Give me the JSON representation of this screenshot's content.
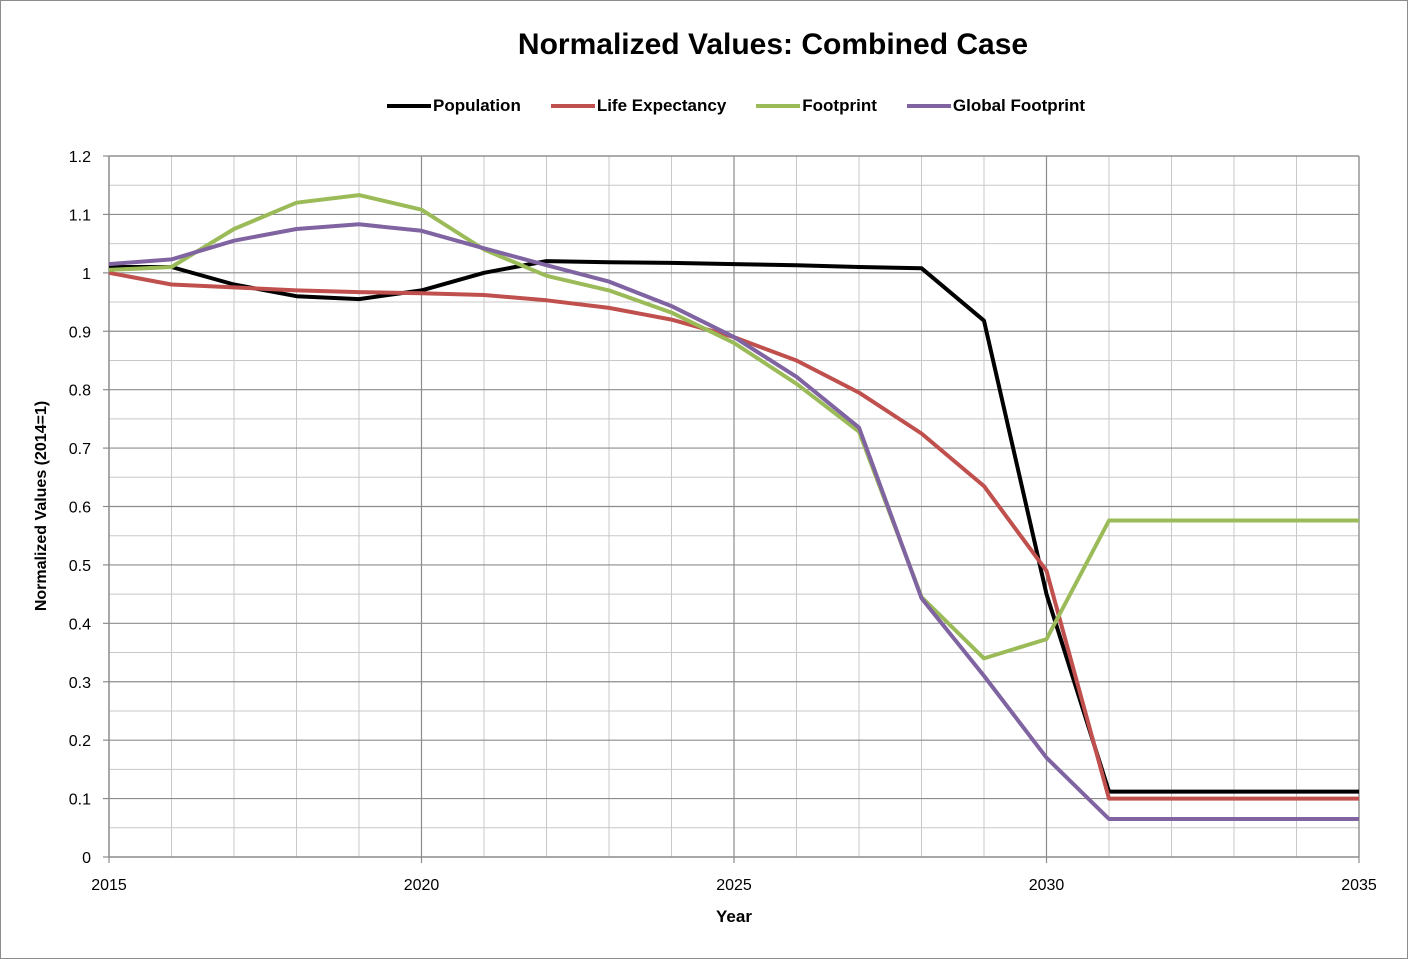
{
  "chart_data": {
    "type": "line",
    "title": "Normalized Values: Combined Case",
    "xlabel": "Year",
    "ylabel": "Normalized Values (2014=1)",
    "xlim": [
      2015,
      2035
    ],
    "ylim": [
      0,
      1.2
    ],
    "x_ticks": [
      "2015",
      "2020",
      "2025",
      "2030",
      "2035"
    ],
    "y_ticks": [
      "0",
      "0.1",
      "0.2",
      "0.3",
      "0.4",
      "0.5",
      "0.6",
      "0.7",
      "0.8",
      "0.9",
      "1",
      "1.1",
      "1.2"
    ],
    "grid": true,
    "legend_position": "top",
    "x": [
      2015,
      2016,
      2017,
      2018,
      2019,
      2020,
      2021,
      2022,
      2023,
      2024,
      2025,
      2026,
      2027,
      2028,
      2029,
      2030,
      2031,
      2032,
      2033,
      2034,
      2035
    ],
    "series": [
      {
        "name": "Population",
        "color": "#000000",
        "values": [
          1.01,
          1.01,
          0.98,
          0.96,
          0.955,
          0.97,
          1.0,
          1.02,
          1.018,
          1.017,
          1.015,
          1.013,
          1.01,
          1.008,
          0.918,
          0.45,
          0.112,
          0.112,
          0.112,
          0.112,
          0.112
        ]
      },
      {
        "name": "Life Expectancy",
        "color": "#c0504d",
        "values": [
          1.0,
          0.98,
          0.975,
          0.97,
          0.967,
          0.965,
          0.962,
          0.953,
          0.94,
          0.92,
          0.89,
          0.85,
          0.795,
          0.725,
          0.635,
          0.49,
          0.1,
          0.1,
          0.1,
          0.1,
          0.1
        ]
      },
      {
        "name": "Footprint",
        "color": "#9bbb59",
        "values": [
          1.005,
          1.01,
          1.075,
          1.12,
          1.133,
          1.108,
          1.04,
          0.995,
          0.97,
          0.932,
          0.88,
          0.81,
          0.728,
          0.445,
          0.34,
          0.373,
          0.576,
          0.576,
          0.576,
          0.576,
          0.576
        ]
      },
      {
        "name": "Global Footprint",
        "color": "#8064a2",
        "values": [
          1.015,
          1.023,
          1.055,
          1.075,
          1.083,
          1.072,
          1.042,
          1.013,
          0.985,
          0.943,
          0.89,
          0.822,
          0.735,
          0.443,
          0.31,
          0.17,
          0.065,
          0.065,
          0.065,
          0.065,
          0.065
        ]
      }
    ]
  }
}
